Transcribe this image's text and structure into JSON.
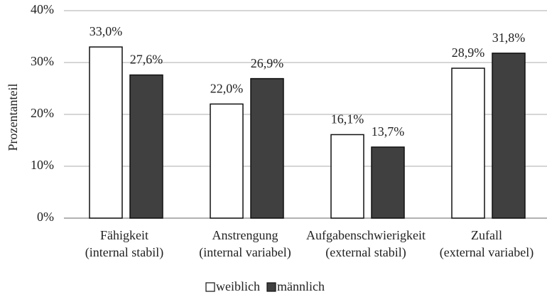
{
  "chart_data": {
    "type": "bar",
    "y_label": "Prozentanteil",
    "categories": [
      [
        "Fähigkeit",
        "(internal stabil)"
      ],
      [
        "Anstrengung",
        "(internal variabel)"
      ],
      [
        "Aufgabenschwierigkeit",
        "(external stabil)"
      ],
      [
        "Zufall",
        "(external variabel)"
      ]
    ],
    "series": [
      {
        "name": "weiblich",
        "color": "#ffffff",
        "values": [
          33.0,
          22.0,
          16.1,
          28.9
        ],
        "value_labels": [
          "33,0%",
          "22,0%",
          "16,1%",
          "28,9%"
        ]
      },
      {
        "name": "männlich",
        "color": "#404040",
        "values": [
          27.6,
          26.9,
          13.7,
          31.8
        ],
        "value_labels": [
          "27,6%",
          "26,9%",
          "13,7%",
          "31,8%"
        ]
      }
    ],
    "ylim": [
      0,
      40
    ],
    "yticks": [
      {
        "value": 0,
        "label": "0%"
      },
      {
        "value": 10,
        "label": "10%"
      },
      {
        "value": 20,
        "label": "20%"
      },
      {
        "value": 30,
        "label": "30%"
      },
      {
        "value": 40,
        "label": "40%"
      }
    ],
    "grid": true,
    "legend": "bottom"
  }
}
